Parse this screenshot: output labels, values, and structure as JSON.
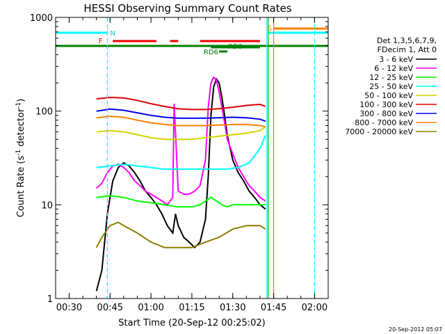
{
  "chart_data": {
    "type": "line",
    "title": "HESSI Observing Summary Count Rates",
    "xlabel": "Start Time (20-Sep-12 00:25:02)",
    "ylabel_main": "Count Rate (s",
    "ylabel_sup": "-1",
    "ylabel_tail": " detector",
    "ylabel_sup2": "-1",
    "ylabel_close": ")",
    "yscale": "log",
    "xlim": [
      "00:25:02",
      "02:05:00"
    ],
    "ylim": [
      1,
      1000
    ],
    "x_ticks": [
      "00:30",
      "00:45",
      "01:00",
      "01:15",
      "01:30",
      "01:45",
      "02:00"
    ],
    "y_ticks": [
      "1",
      "10",
      "100",
      "1000"
    ],
    "footer_date": "20-Sep-2012 05:07",
    "legend": {
      "header": [
        "Det 1,3,5,6,7,9,",
        "FDecim 1, Att 0"
      ],
      "entries": [
        {
          "label": "3 - 6 keV",
          "color": "#000000"
        },
        {
          "label": "6 - 12 keV",
          "color": "#ff00ff"
        },
        {
          "label": "12 - 25 keV",
          "color": "#00ff00"
        },
        {
          "label": "25 - 50 keV",
          "color": "#00ffff"
        },
        {
          "label": "50 - 100 keV",
          "color": "#d4d400"
        },
        {
          "label": "100 - 300 keV",
          "color": "#dd0000"
        },
        {
          "label": "300 - 800 keV",
          "color": "#0000ee"
        },
        {
          "label": "800 - 7000 keV",
          "color": "#ff8000"
        },
        {
          "label": "7000 - 20000 keV",
          "color": "#8b7d00"
        }
      ]
    },
    "flag_labels": {
      "N": "N",
      "F": "F",
      "S": "S",
      "RD9": "RD9",
      "RD6": "RD6"
    },
    "flag_intervals": {
      "night": {
        "color": "#00ffff",
        "segments": [
          [
            "00:25:02",
            "00:44:00"
          ],
          [
            "01:43:00",
            "02:05:00"
          ]
        ]
      },
      "flare": {
        "color": "#ee0000",
        "segments": [
          [
            "00:46:00",
            "01:02:00"
          ],
          [
            "01:07:00",
            "01:10:00"
          ],
          [
            "01:18:00",
            "01:40:00"
          ]
        ]
      },
      "saa": {
        "color": "#ff8000",
        "segments": [
          [
            "01:45:00",
            "02:05:00"
          ]
        ]
      },
      "attenuator_line": {
        "color": "#008000",
        "segments": [
          [
            "00:25:02",
            "02:05:00"
          ]
        ]
      },
      "rd9": {
        "color": "#008000",
        "segments": [
          [
            "01:22:00",
            "01:40:00"
          ]
        ]
      },
      "rd6": {
        "color": "#008000",
        "segments": [
          [
            "01:25:00",
            "01:28:00"
          ]
        ]
      }
    },
    "vertical_markers": [
      {
        "time": "00:44:00",
        "color": "#00ffff",
        "style": "dashed"
      },
      {
        "time": "01:42:30",
        "color": "#00ffff",
        "style": "solid"
      },
      {
        "time": "01:43:00",
        "color": "#00aa00",
        "style": "solid"
      },
      {
        "time": "01:45:00",
        "color": "#ff8000",
        "style": "solid"
      },
      {
        "time": "02:00:00",
        "color": "#00ffff",
        "style": "dashed"
      }
    ],
    "series": [
      {
        "name": "3 - 6 keV",
        "color": "#000000",
        "x": [
          "00:40:00",
          "00:42:00",
          "00:44:00",
          "00:46:00",
          "00:48:00",
          "00:50:00",
          "00:52:00",
          "00:54:00",
          "00:56:00",
          "00:58:00",
          "01:00:00",
          "01:02:00",
          "01:04:00",
          "01:06:00",
          "01:08:00",
          "01:09:00",
          "01:10:00",
          "01:12:00",
          "01:14:00",
          "01:16:00",
          "01:18:00",
          "01:20:00",
          "01:21:00",
          "01:22:00",
          "01:23:00",
          "01:24:00",
          "01:25:00",
          "01:26:00",
          "01:27:00",
          "01:28:00",
          "01:30:00",
          "01:32:00",
          "01:34:00",
          "01:36:00",
          "01:38:00",
          "01:40:00",
          "01:42:00"
        ],
        "y": [
          1.2,
          2,
          8,
          18,
          25,
          28,
          26,
          22,
          18,
          14,
          12,
          10,
          8,
          6,
          5,
          8,
          6,
          4.5,
          4,
          3.5,
          4,
          7,
          20,
          90,
          180,
          220,
          200,
          140,
          90,
          55,
          30,
          22,
          18,
          14,
          12,
          10,
          9
        ]
      },
      {
        "name": "6 - 12 keV",
        "color": "#ff00ff",
        "x": [
          "00:40:00",
          "00:42:00",
          "00:44:00",
          "00:46:00",
          "00:48:00",
          "00:50:00",
          "00:52:00",
          "00:54:00",
          "00:56:00",
          "00:58:00",
          "01:00:00",
          "01:02:00",
          "01:04:00",
          "01:06:00",
          "01:08:00",
          "01:08:30",
          "01:09:00",
          "01:10:00",
          "01:12:00",
          "01:14:00",
          "01:16:00",
          "01:18:00",
          "01:20:00",
          "01:21:00",
          "01:22:00",
          "01:23:00",
          "01:24:00",
          "01:25:00",
          "01:26:00",
          "01:27:00",
          "01:28:00",
          "01:30:00",
          "01:32:00",
          "01:34:00",
          "01:36:00",
          "01:38:00",
          "01:40:00",
          "01:42:00"
        ],
        "y": [
          15,
          17,
          22,
          26,
          27,
          25,
          22,
          18,
          16,
          14,
          13,
          12,
          11,
          10,
          12,
          120,
          60,
          14,
          13,
          13,
          14,
          16,
          30,
          110,
          200,
          230,
          215,
          160,
          110,
          75,
          50,
          35,
          25,
          20,
          16,
          14,
          12,
          11
        ]
      },
      {
        "name": "12 - 25 keV",
        "color": "#00ff00",
        "x": [
          "00:40:00",
          "00:45:00",
          "00:50:00",
          "00:55:00",
          "01:00:00",
          "01:05:00",
          "01:10:00",
          "01:15:00",
          "01:18:00",
          "01:20:00",
          "01:22:00",
          "01:24:00",
          "01:26:00",
          "01:28:00",
          "01:30:00",
          "01:35:00",
          "01:40:00",
          "01:42:00"
        ],
        "y": [
          12,
          12.5,
          12,
          11,
          10.5,
          10,
          9.5,
          9.5,
          10,
          11,
          12,
          11,
          10,
          9.5,
          10,
          10,
          10,
          10
        ]
      },
      {
        "name": "25 - 50 keV",
        "color": "#00ffff",
        "x": [
          "00:40:00",
          "00:45:00",
          "00:50:00",
          "00:55:00",
          "01:00:00",
          "01:05:00",
          "01:10:00",
          "01:15:00",
          "01:20:00",
          "01:25:00",
          "01:28:00",
          "01:32:00",
          "01:36:00",
          "01:40:00",
          "01:42:00"
        ],
        "y": [
          25,
          26,
          27,
          26,
          25,
          24,
          24,
          24,
          24,
          24,
          24,
          25,
          28,
          40,
          55
        ]
      },
      {
        "name": "50 - 100 keV",
        "color": "#d4d400",
        "x": [
          "00:40:00",
          "00:45:00",
          "00:50:00",
          "00:55:00",
          "01:00:00",
          "01:05:00",
          "01:10:00",
          "01:15:00",
          "01:20:00",
          "01:25:00",
          "01:30:00",
          "01:35:00",
          "01:40:00",
          "01:42:00"
        ],
        "y": [
          60,
          62,
          60,
          56,
          52,
          50,
          50,
          50,
          52,
          54,
          56,
          58,
          62,
          68
        ]
      },
      {
        "name": "100 - 300 keV",
        "color": "#dd0000",
        "x": [
          "00:40:00",
          "00:45:00",
          "00:50:00",
          "00:55:00",
          "01:00:00",
          "01:05:00",
          "01:10:00",
          "01:15:00",
          "01:20:00",
          "01:25:00",
          "01:30:00",
          "01:35:00",
          "01:40:00",
          "01:42:00"
        ],
        "y": [
          135,
          140,
          138,
          130,
          120,
          112,
          106,
          104,
          104,
          106,
          110,
          115,
          118,
          112
        ]
      },
      {
        "name": "300 - 800 keV",
        "color": "#0000ee",
        "x": [
          "00:40:00",
          "00:45:00",
          "00:50:00",
          "00:55:00",
          "01:00:00",
          "01:05:00",
          "01:10:00",
          "01:15:00",
          "01:20:00",
          "01:25:00",
          "01:30:00",
          "01:35:00",
          "01:40:00",
          "01:42:00"
        ],
        "y": [
          100,
          105,
          102,
          96,
          90,
          86,
          84,
          84,
          84,
          85,
          86,
          85,
          82,
          78
        ]
      },
      {
        "name": "800 - 7000 keV",
        "color": "#ff8000",
        "x": [
          "00:40:00",
          "00:45:00",
          "00:50:00",
          "00:55:00",
          "01:00:00",
          "01:05:00",
          "01:10:00",
          "01:15:00",
          "01:20:00",
          "01:25:00",
          "01:30:00",
          "01:35:00",
          "01:40:00",
          "01:42:00"
        ],
        "y": [
          85,
          88,
          86,
          80,
          75,
          72,
          70,
          70,
          70,
          71,
          72,
          72,
          70,
          68
        ]
      },
      {
        "name": "7000 - 20000 keV",
        "color": "#8b7d00",
        "x": [
          "00:40:00",
          "00:42:00",
          "00:45:00",
          "00:48:00",
          "00:50:00",
          "00:55:00",
          "01:00:00",
          "01:05:00",
          "01:10:00",
          "01:15:00",
          "01:20:00",
          "01:25:00",
          "01:30:00",
          "01:35:00",
          "01:40:00",
          "01:42:00"
        ],
        "y": [
          3.5,
          4.5,
          6,
          6.5,
          6,
          5,
          4,
          3.5,
          3.5,
          3.5,
          4,
          4.5,
          5.5,
          6,
          6,
          5.5
        ]
      }
    ]
  }
}
